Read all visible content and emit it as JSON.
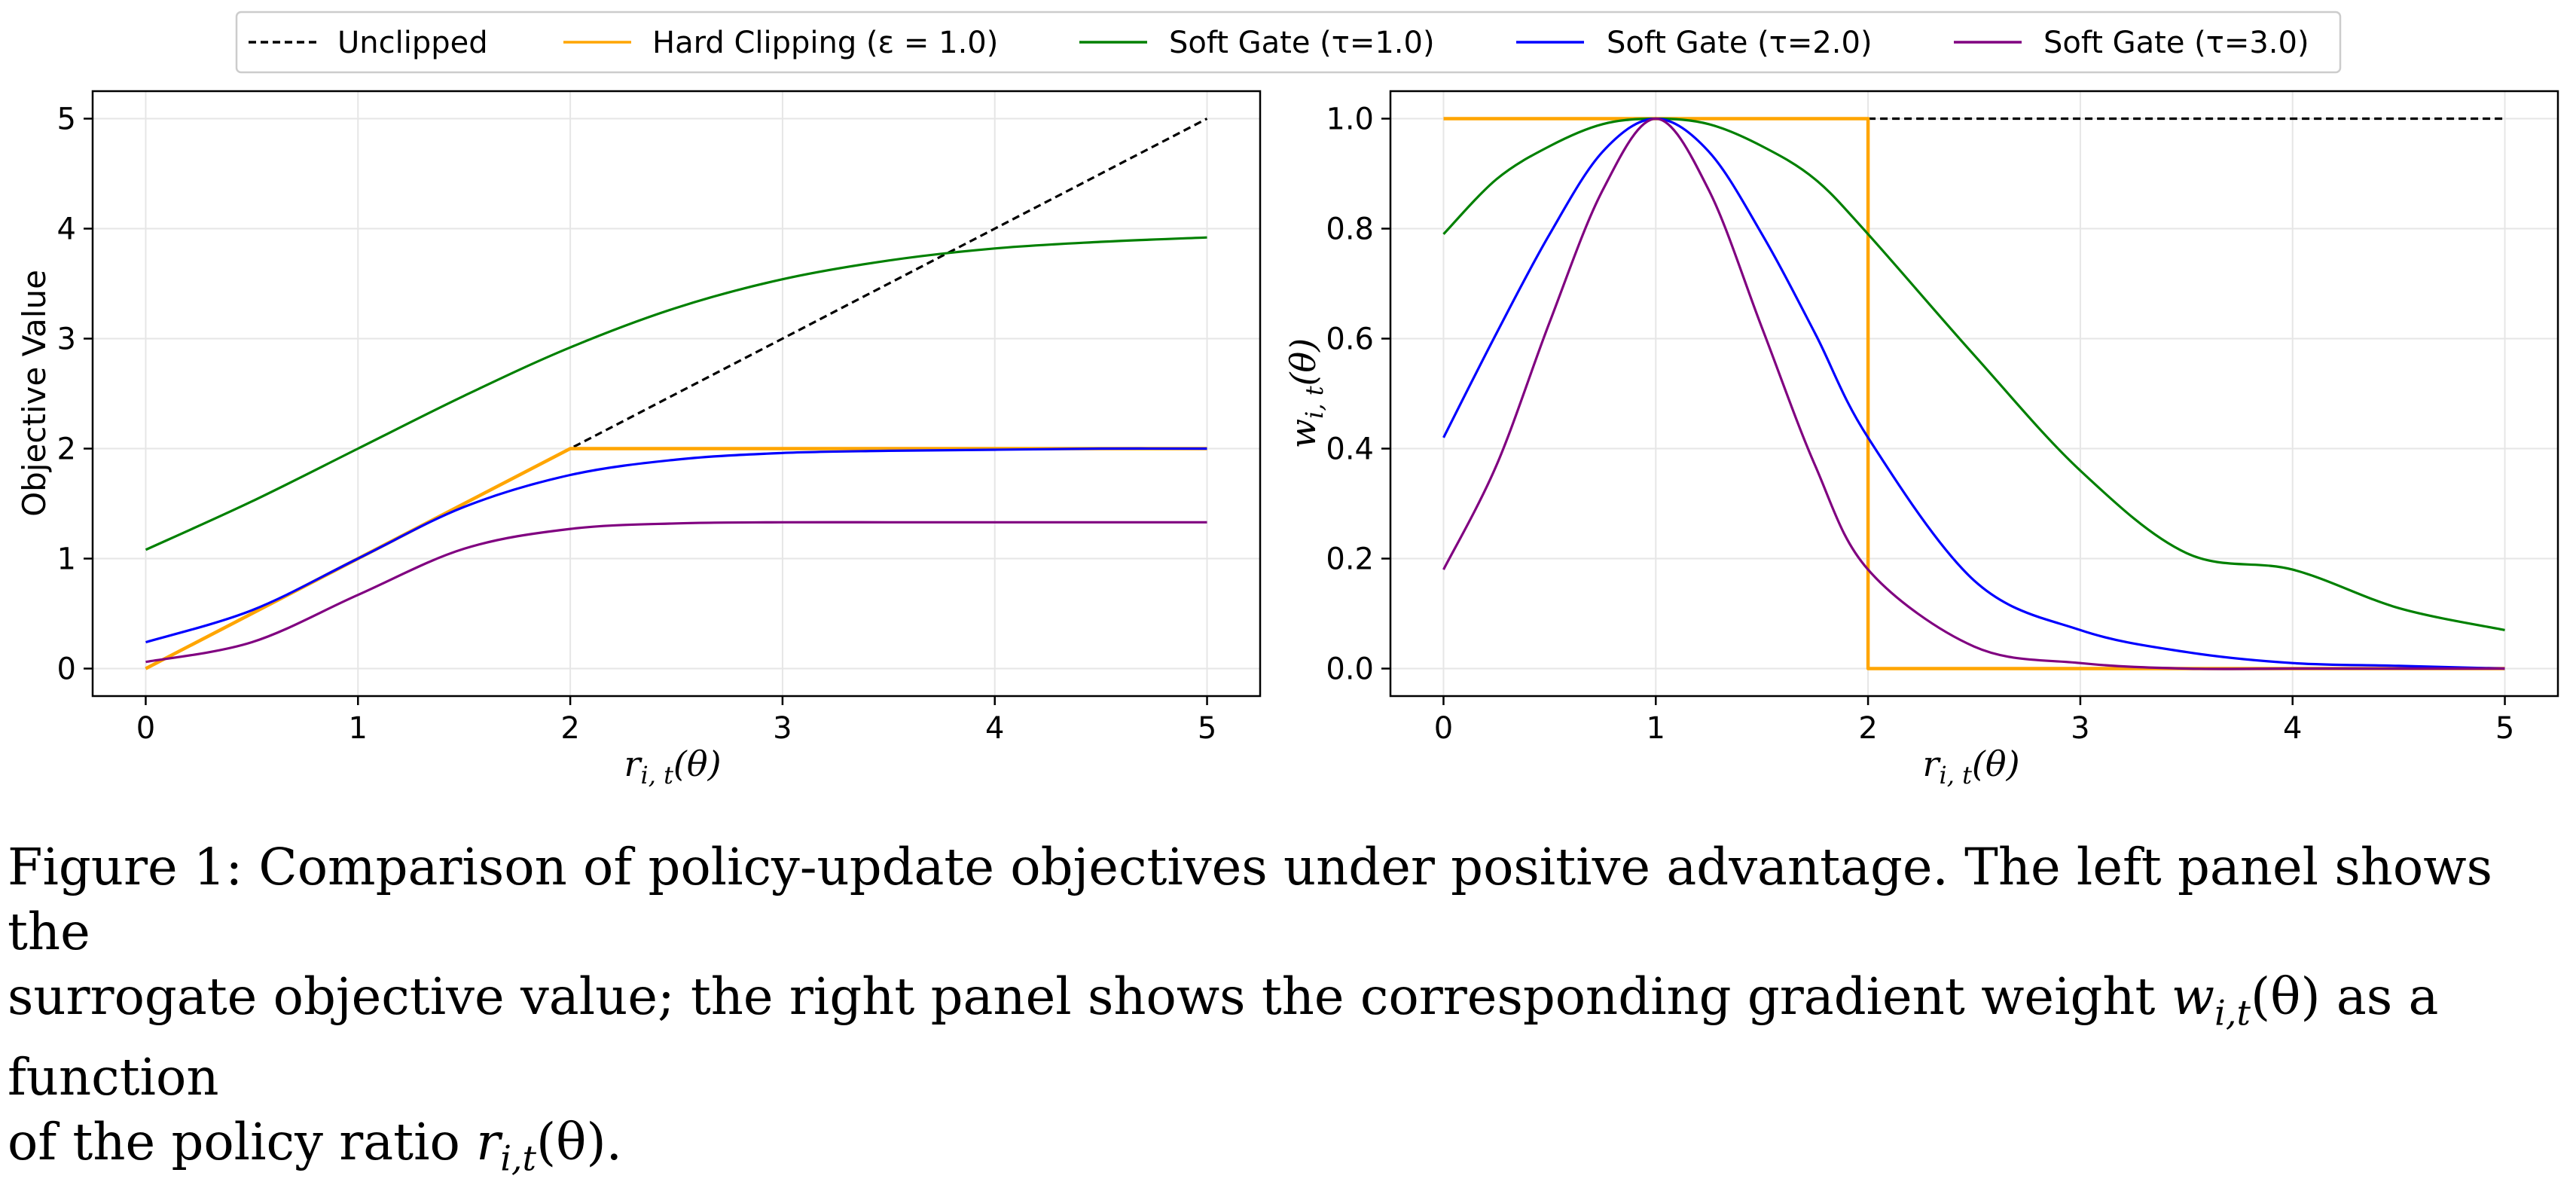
{
  "colors": {
    "unclipped": "#000000",
    "hard": "#ffa500",
    "soft1": "#008000",
    "soft2": "#0000ff",
    "soft3": "#800080",
    "grid": "#e6e6e6"
  },
  "legend": {
    "unclipped": "Unclipped",
    "hard": "Hard Clipping (ε = 1.0)",
    "soft1": "Soft Gate (τ=1.0)",
    "soft2": "Soft Gate (τ=2.0)",
    "soft3": "Soft Gate (τ=3.0)"
  },
  "chart_data": [
    {
      "type": "line",
      "title": "",
      "xlabel": "r_{i,t}(θ)",
      "ylabel": "Objective Value",
      "xlim": [
        -0.25,
        5.25
      ],
      "ylim": [
        -0.25,
        5.25
      ],
      "xticks": [
        0,
        1,
        2,
        3,
        4,
        5
      ],
      "yticks": [
        0,
        1,
        2,
        3,
        4,
        5
      ],
      "xtick_labels": [
        "0",
        "1",
        "2",
        "3",
        "4",
        "5"
      ],
      "ytick_labels": [
        "0",
        "1",
        "2",
        "3",
        "4",
        "5"
      ],
      "x": [
        0,
        0.5,
        1,
        1.5,
        2,
        2.5,
        3,
        3.5,
        4,
        4.5,
        5
      ],
      "series": [
        {
          "key": "unclipped",
          "name": "Unclipped",
          "dashed": true,
          "values": [
            0,
            0.5,
            1,
            1.5,
            2,
            2.5,
            3,
            3.5,
            4,
            4.5,
            5
          ]
        },
        {
          "key": "hard",
          "name": "Hard Clipping (ε = 1.0)",
          "values": [
            0,
            0.5,
            1,
            1.5,
            2,
            2,
            2,
            2,
            2,
            2,
            2
          ]
        },
        {
          "key": "soft1",
          "name": "Soft Gate (τ=1.0)",
          "values": [
            1.08,
            1.52,
            2.0,
            2.48,
            2.92,
            3.28,
            3.54,
            3.71,
            3.82,
            3.88,
            3.92
          ]
        },
        {
          "key": "soft2",
          "name": "Soft Gate (τ=2.0)",
          "values": [
            0.24,
            0.53,
            1.0,
            1.47,
            1.76,
            1.9,
            1.96,
            1.98,
            1.99,
            2.0,
            2.0
          ]
        },
        {
          "key": "soft3",
          "name": "Soft Gate (τ=3.0)",
          "values": [
            0.06,
            0.24,
            0.67,
            1.09,
            1.27,
            1.32,
            1.33,
            1.33,
            1.33,
            1.33,
            1.33
          ]
        }
      ]
    },
    {
      "type": "line",
      "title": "",
      "xlabel": "r_{i,t}(θ)",
      "ylabel": "w_{i,t}(θ)",
      "xlim": [
        -0.25,
        5.25
      ],
      "ylim": [
        -0.05,
        1.05
      ],
      "xticks": [
        0,
        1,
        2,
        3,
        4,
        5
      ],
      "yticks": [
        0,
        0.2,
        0.4,
        0.6,
        0.8,
        1.0
      ],
      "xtick_labels": [
        "0",
        "1",
        "2",
        "3",
        "4",
        "5"
      ],
      "ytick_labels": [
        "0.0",
        "0.2",
        "0.4",
        "0.6",
        "0.8",
        "1.0"
      ],
      "x": [
        0,
        0.25,
        0.5,
        0.75,
        1,
        1.25,
        1.5,
        1.75,
        2,
        2.5,
        3,
        3.5,
        4,
        4.5,
        5
      ],
      "series": [
        {
          "key": "unclipped",
          "name": "Unclipped",
          "dashed": true,
          "x": [
            2,
            5
          ],
          "values": [
            1,
            1
          ]
        },
        {
          "key": "hard",
          "name": "Hard Clipping (ε = 1.0)",
          "x": [
            0,
            2,
            2,
            5
          ],
          "values": [
            1,
            1,
            0,
            0
          ]
        },
        {
          "key": "soft1",
          "name": "Soft Gate (τ=1.0)",
          "values": [
            0.79,
            0.89,
            0.95,
            0.99,
            1.0,
            0.99,
            0.95,
            0.89,
            0.79,
            0.57,
            0.36,
            0.21,
            0.18,
            0.11,
            0.07
          ]
        },
        {
          "key": "soft2",
          "name": "Soft Gate (τ=2.0)",
          "values": [
            0.42,
            0.61,
            0.79,
            0.94,
            1.0,
            0.94,
            0.79,
            0.61,
            0.42,
            0.16,
            0.07,
            0.03,
            0.01,
            0.005,
            0.0
          ]
        },
        {
          "key": "soft3",
          "name": "Soft Gate (τ=3.0)",
          "values": [
            0.18,
            0.37,
            0.63,
            0.87,
            1.0,
            0.87,
            0.62,
            0.37,
            0.18,
            0.04,
            0.01,
            0.0,
            0.0,
            0.0,
            0.0
          ]
        }
      ]
    }
  ],
  "caption": {
    "line1": "Figure 1: Comparison of policy-update objectives under positive advantage. The left panel shows the",
    "line2": "surrogate objective value; the right panel shows the corresponding gradient weight",
    "line2_math": "w",
    "line2_sub": "i,t",
    "line2_math_tail": "(θ)",
    "line2_end": " as a function",
    "line3": "of the policy ratio",
    "line3_math": "r",
    "line3_sub": "i,t",
    "line3_math_tail": "(θ)",
    "line3_end": "."
  }
}
